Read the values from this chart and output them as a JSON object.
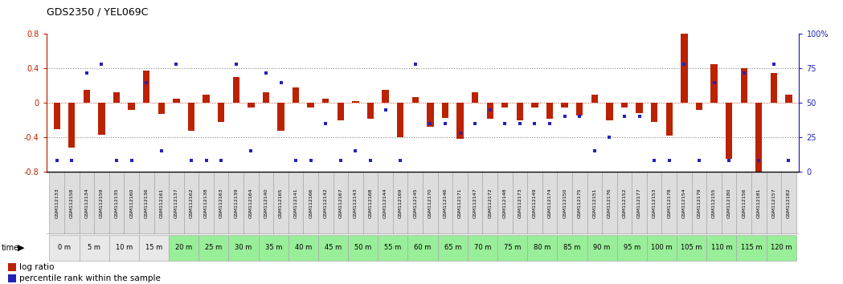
{
  "title": "GDS2350 / YEL069C",
  "gsm_labels": [
    "GSM112133",
    "GSM112158",
    "GSM112134",
    "GSM112159",
    "GSM112135",
    "GSM112160",
    "GSM112136",
    "GSM112161",
    "GSM112137",
    "GSM112162",
    "GSM112138",
    "GSM112163",
    "GSM112139",
    "GSM112164",
    "GSM112140",
    "GSM112165",
    "GSM112141",
    "GSM112166",
    "GSM112142",
    "GSM112167",
    "GSM112143",
    "GSM112168",
    "GSM112144",
    "GSM112169",
    "GSM112145",
    "GSM112170",
    "GSM112146",
    "GSM112171",
    "GSM112147",
    "GSM112172",
    "GSM112148",
    "GSM112173",
    "GSM112149",
    "GSM112174",
    "GSM112150",
    "GSM112175",
    "GSM112151",
    "GSM112176",
    "GSM112152",
    "GSM112177",
    "GSM112153",
    "GSM112178",
    "GSM112154",
    "GSM112179",
    "GSM112155",
    "GSM112180",
    "GSM112156",
    "GSM112181",
    "GSM112157",
    "GSM112182"
  ],
  "time_labels": [
    "0 m",
    "5 m",
    "10 m",
    "15 m",
    "20 m",
    "25 m",
    "30 m",
    "35 m",
    "40 m",
    "45 m",
    "50 m",
    "55 m",
    "60 m",
    "65 m",
    "70 m",
    "75 m",
    "80 m",
    "85 m",
    "90 m",
    "95 m",
    "100 m",
    "105 m",
    "110 m",
    "115 m",
    "120 m"
  ],
  "log_ratio": [
    -0.3,
    -0.52,
    0.15,
    -0.37,
    0.12,
    -0.08,
    0.38,
    -0.13,
    0.05,
    -0.32,
    0.1,
    -0.22,
    0.3,
    -0.05,
    0.12,
    -0.32,
    0.18,
    -0.05,
    0.05,
    -0.2,
    0.02,
    -0.18,
    0.15,
    -0.4,
    0.07,
    -0.28,
    -0.17,
    -0.42,
    0.12,
    -0.18,
    -0.05,
    -0.2,
    -0.05,
    -0.18,
    -0.05,
    -0.15,
    0.1,
    -0.2,
    -0.05,
    -0.12,
    -0.22,
    -0.38,
    0.8,
    -0.08,
    0.45,
    -0.65,
    0.4,
    -0.8,
    0.35,
    0.1
  ],
  "percentile": [
    8,
    8,
    72,
    78,
    8,
    8,
    65,
    15,
    78,
    8,
    8,
    8,
    78,
    15,
    72,
    65,
    8,
    8,
    35,
    8,
    15,
    8,
    45,
    8,
    78,
    35,
    35,
    28,
    35,
    45,
    35,
    35,
    35,
    35,
    40,
    40,
    15,
    25,
    40,
    40,
    8,
    8,
    78,
    8,
    65,
    8,
    72,
    8,
    78,
    8
  ],
  "ylim": [
    -0.8,
    0.8
  ],
  "y2lim": [
    0,
    100
  ],
  "bar_color": "#bb2200",
  "scatter_color": "#2222bb",
  "white_times": [
    "0 m",
    "5 m",
    "10 m",
    "15 m"
  ],
  "green_color": "#99ee99",
  "gsm_bg": "#dddddd",
  "plot_bg": "#ffffff",
  "dotline_color": "#888888"
}
